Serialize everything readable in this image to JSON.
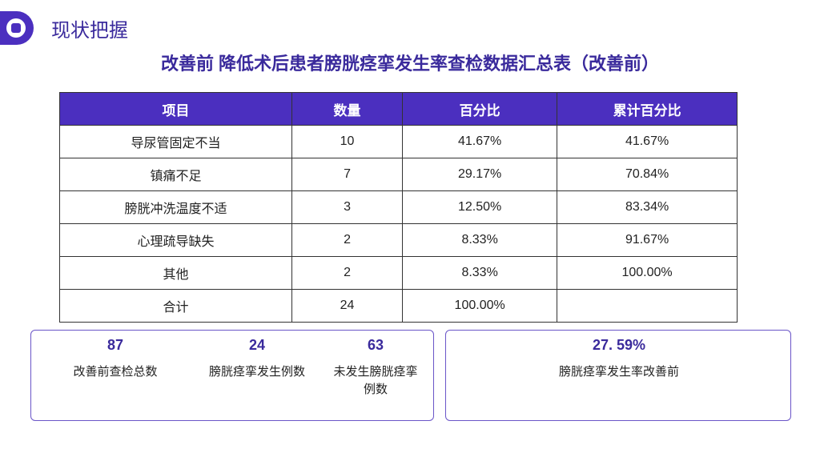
{
  "header": {
    "section": "现状把握",
    "title": "改善前  降低术后患者膀胱痉挛发生率查检数据汇总表（改善前）"
  },
  "table": {
    "header": [
      "项目",
      "数量",
      "百分比",
      "累计百分比"
    ],
    "rows": [
      [
        "导尿管固定不当",
        "10",
        "41.67%",
        "41.67%"
      ],
      [
        "镇痛不足",
        "7",
        "29.17%",
        "70.84%"
      ],
      [
        "膀胱冲洗温度不适",
        "3",
        "12.50%",
        "83.34%"
      ],
      [
        "心理疏导缺失",
        "2",
        "8.33%",
        "91.67%"
      ],
      [
        "其他",
        "2",
        "8.33%",
        "100.00%"
      ],
      [
        "合计",
        "24",
        "100.00%"
      ]
    ]
  },
  "stats": [
    {
      "value": "87",
      "label": "改善前查检总数"
    },
    {
      "value": "24",
      "label": "膀胱痉挛发生例数"
    },
    {
      "value": "63",
      "label": "未发生膀胱痉挛例数"
    }
  ],
  "summary": {
    "value": "27. 59%",
    "label": "膀胱痉挛发生率改善前"
  }
}
